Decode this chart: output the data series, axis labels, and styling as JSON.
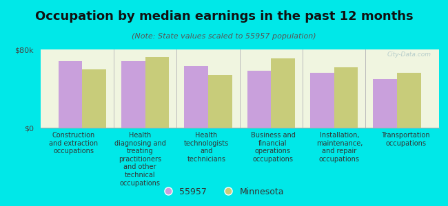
{
  "title": "Occupation by median earnings in the past 12 months",
  "subtitle": "(Note: State values scaled to 55957 population)",
  "background_color": "#00e8e8",
  "plot_bg_color": "#f0f5e0",
  "categories": [
    "Construction\nand extraction\noccupations",
    "Health\ndiagnosing and\ntreating\npractitioners\nand other\ntechnical\noccupations",
    "Health\ntechnologists\nand\ntechnicians",
    "Business and\nfinancial\noperations\noccupations",
    "Installation,\nmaintenance,\nand repair\noccupations",
    "Transportation\noccupations"
  ],
  "values_55957": [
    68000,
    68000,
    63000,
    58000,
    56000,
    50000
  ],
  "values_minnesota": [
    60000,
    72000,
    54000,
    71000,
    62000,
    56000
  ],
  "color_55957": "#c9a0dc",
  "color_minnesota": "#c8cc7a",
  "ylim": [
    0,
    80000
  ],
  "ytick_labels": [
    "$0",
    "$80k"
  ],
  "legend_55957": "55957",
  "legend_minnesota": "Minnesota",
  "watermark": "City-Data.com",
  "title_fontsize": 13,
  "subtitle_fontsize": 8,
  "label_fontsize": 7,
  "ytick_fontsize": 8
}
